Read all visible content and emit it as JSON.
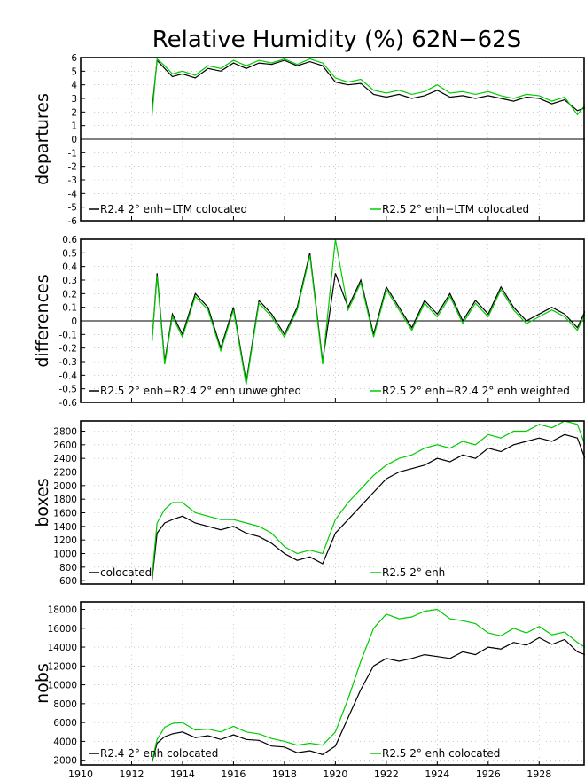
{
  "title": "Relative Humidity (%) 62N−62S",
  "colors": {
    "black_series": "#000000",
    "green_series": "#00cc00",
    "axis": "#000000",
    "grid": "#aaaaaa"
  },
  "x_ticks": [
    "1910",
    "1912",
    "1914",
    "1916",
    "1918",
    "1920",
    "1922",
    "1924",
    "1926",
    "1928"
  ],
  "chart_data": [
    {
      "type": "line",
      "ylabel": "departures",
      "ylim": [
        -6,
        6
      ],
      "xlim": [
        1910,
        1929.8
      ],
      "y_ticks": [
        "6",
        "5",
        "4",
        "3",
        "2",
        "1",
        "0",
        "-1",
        "-2",
        "-3",
        "-4",
        "-5",
        "-6"
      ],
      "grid": true,
      "zero_line": true,
      "x": [
        1912.8,
        1913.0,
        1913.3,
        1913.6,
        1914.0,
        1914.5,
        1915.0,
        1915.5,
        1916.0,
        1916.5,
        1917.0,
        1917.5,
        1918.0,
        1918.5,
        1919.0,
        1919.5,
        1920.0,
        1920.5,
        1921.0,
        1921.5,
        1922.0,
        1922.5,
        1923.0,
        1923.5,
        1924.0,
        1924.5,
        1925.0,
        1925.5,
        1926.0,
        1926.5,
        1927.0,
        1927.5,
        1928.0,
        1928.5,
        1929.0,
        1929.5,
        1929.8
      ],
      "series": [
        {
          "name": "R2.4 2° enh−LTM colocated",
          "color": "#000000",
          "values": [
            2.2,
            5.8,
            5.2,
            4.6,
            4.8,
            4.5,
            5.2,
            5.0,
            5.6,
            5.2,
            5.6,
            5.5,
            5.8,
            5.4,
            5.7,
            5.4,
            4.2,
            4.0,
            4.1,
            3.3,
            3.1,
            3.3,
            3.0,
            3.2,
            3.6,
            3.1,
            3.2,
            3.0,
            3.2,
            3.0,
            2.8,
            3.1,
            3.0,
            2.6,
            2.9,
            2.1,
            2.3
          ]
        },
        {
          "name": "R2.5 2° enh−LTM colocated",
          "color": "#00cc00",
          "values": [
            1.7,
            5.9,
            5.4,
            4.8,
            5.0,
            4.7,
            5.4,
            5.2,
            5.8,
            5.4,
            5.8,
            5.6,
            5.9,
            5.5,
            5.9,
            5.6,
            4.5,
            4.2,
            4.4,
            3.6,
            3.4,
            3.6,
            3.3,
            3.5,
            4.0,
            3.4,
            3.5,
            3.3,
            3.5,
            3.2,
            3.0,
            3.3,
            3.2,
            2.8,
            3.1,
            1.8,
            2.5
          ]
        }
      ],
      "legend": "bottom"
    },
    {
      "type": "line",
      "ylabel": "differences",
      "ylim": [
        -0.6,
        0.6
      ],
      "xlim": [
        1910,
        1929.8
      ],
      "y_ticks": [
        "0.6",
        "0.5",
        "0.4",
        "0.3",
        "0.2",
        "0.1",
        "0",
        "-0.1",
        "-0.2",
        "-0.3",
        "-0.4",
        "-0.5",
        "-0.6"
      ],
      "grid": true,
      "zero_line": true,
      "x": [
        1912.8,
        1913.0,
        1913.3,
        1913.6,
        1914.0,
        1914.5,
        1915.0,
        1915.5,
        1916.0,
        1916.5,
        1917.0,
        1917.5,
        1918.0,
        1918.5,
        1919.0,
        1919.5,
        1920.0,
        1920.5,
        1921.0,
        1921.5,
        1922.0,
        1922.5,
        1923.0,
        1923.5,
        1924.0,
        1924.5,
        1925.0,
        1925.5,
        1926.0,
        1926.5,
        1927.0,
        1927.5,
        1928.0,
        1928.5,
        1929.0,
        1929.5,
        1929.8
      ],
      "series": [
        {
          "name": "R2.5 2° enh−R2.4 2° enh unweighted",
          "color": "#000000",
          "values": [
            -0.15,
            0.35,
            -0.3,
            0.05,
            -0.1,
            0.2,
            0.1,
            -0.2,
            0.1,
            -0.45,
            0.15,
            0.05,
            -0.1,
            0.1,
            0.5,
            -0.3,
            0.35,
            0.1,
            0.3,
            -0.1,
            0.25,
            0.1,
            -0.05,
            0.15,
            0.05,
            0.2,
            0.0,
            0.15,
            0.05,
            0.25,
            0.1,
            0.0,
            0.05,
            0.1,
            0.05,
            -0.05,
            0.07
          ]
        },
        {
          "name": "R2.5 2° enh−R2.4 2° enh weighted",
          "color": "#00cc00",
          "values": [
            -0.15,
            0.33,
            -0.32,
            0.03,
            -0.12,
            0.18,
            0.08,
            -0.22,
            0.08,
            -0.47,
            0.13,
            0.03,
            -0.12,
            0.08,
            0.48,
            -0.32,
            0.6,
            0.08,
            0.28,
            -0.12,
            0.23,
            0.08,
            -0.07,
            0.13,
            0.03,
            0.18,
            -0.02,
            0.13,
            0.03,
            0.23,
            0.08,
            -0.02,
            0.03,
            0.08,
            0.03,
            -0.07,
            0.05
          ]
        }
      ],
      "legend": "bottom"
    },
    {
      "type": "line",
      "ylabel": "boxes",
      "ylim": [
        550,
        2950
      ],
      "xlim": [
        1910,
        1929.8
      ],
      "y_ticks": [
        "2800",
        "2600",
        "2400",
        "2200",
        "2000",
        "1800",
        "1600",
        "1400",
        "1200",
        "1000",
        "800",
        "600"
      ],
      "y_tick_values": [
        2800,
        2600,
        2400,
        2200,
        2000,
        1800,
        1600,
        1400,
        1200,
        1000,
        800,
        600
      ],
      "grid": true,
      "zero_line": false,
      "x": [
        1912.8,
        1913.0,
        1913.3,
        1913.6,
        1914.0,
        1914.5,
        1915.0,
        1915.5,
        1916.0,
        1916.5,
        1917.0,
        1917.5,
        1918.0,
        1918.5,
        1919.0,
        1919.5,
        1920.0,
        1920.5,
        1921.0,
        1921.5,
        1922.0,
        1922.5,
        1923.0,
        1923.5,
        1924.0,
        1924.5,
        1925.0,
        1925.5,
        1926.0,
        1926.5,
        1927.0,
        1927.5,
        1928.0,
        1928.5,
        1929.0,
        1929.5,
        1929.8
      ],
      "series": [
        {
          "name": "colocated",
          "color": "#000000",
          "values": [
            600,
            1300,
            1450,
            1500,
            1550,
            1450,
            1400,
            1350,
            1400,
            1300,
            1250,
            1150,
            1000,
            900,
            950,
            850,
            1300,
            1500,
            1700,
            1900,
            2100,
            2200,
            2250,
            2300,
            2400,
            2350,
            2450,
            2400,
            2550,
            2500,
            2600,
            2650,
            2700,
            2650,
            2750,
            2700,
            2400
          ]
        },
        {
          "name": "R2.5 2° enh",
          "color": "#00cc00",
          "values": [
            650,
            1450,
            1650,
            1750,
            1750,
            1600,
            1550,
            1500,
            1500,
            1450,
            1400,
            1300,
            1100,
            1000,
            1050,
            1000,
            1500,
            1750,
            1950,
            2150,
            2300,
            2400,
            2450,
            2550,
            2600,
            2550,
            2650,
            2600,
            2750,
            2700,
            2800,
            2800,
            2900,
            2850,
            2950,
            2900,
            2600
          ]
        }
      ],
      "legend": "bottom"
    },
    {
      "type": "line",
      "ylabel": "nobs",
      "ylim": [
        1500,
        18800
      ],
      "xlim": [
        1910,
        1929.8
      ],
      "y_ticks": [
        "18000",
        "16000",
        "14000",
        "12000",
        "10000",
        "8000",
        "6000",
        "4000",
        "2000"
      ],
      "y_tick_values": [
        18000,
        16000,
        14000,
        12000,
        10000,
        8000,
        6000,
        4000,
        2000
      ],
      "grid": true,
      "zero_line": false,
      "x": [
        1912.8,
        1913.0,
        1913.3,
        1913.6,
        1914.0,
        1914.5,
        1915.0,
        1915.5,
        1916.0,
        1916.5,
        1917.0,
        1917.5,
        1918.0,
        1918.5,
        1919.0,
        1919.5,
        1920.0,
        1920.5,
        1921.0,
        1921.5,
        1922.0,
        1922.5,
        1923.0,
        1923.5,
        1924.0,
        1924.5,
        1925.0,
        1925.5,
        1926.0,
        1926.5,
        1927.0,
        1927.5,
        1928.0,
        1928.5,
        1929.0,
        1929.5,
        1929.8
      ],
      "series": [
        {
          "name": "R2.4 2° enh colocated",
          "color": "#000000",
          "values": [
            1800,
            3800,
            4500,
            4800,
            5000,
            4400,
            4600,
            4200,
            4700,
            4200,
            4100,
            3500,
            3400,
            2800,
            3000,
            2600,
            3500,
            6500,
            9500,
            12000,
            12800,
            12500,
            12800,
            13200,
            13000,
            12800,
            13500,
            13200,
            14000,
            13800,
            14500,
            14200,
            15000,
            14300,
            14800,
            13500,
            13200
          ]
        },
        {
          "name": "R2.5 2° enh colocated",
          "color": "#00cc00",
          "values": [
            1900,
            4200,
            5500,
            5900,
            6000,
            5200,
            5300,
            5000,
            5600,
            5000,
            4800,
            4300,
            4000,
            3600,
            3800,
            3600,
            5000,
            8500,
            12500,
            16000,
            17500,
            17000,
            17200,
            17800,
            18000,
            17000,
            16800,
            16500,
            15500,
            15200,
            16000,
            15500,
            16200,
            15300,
            15600,
            14500,
            14000
          ]
        }
      ],
      "legend": "bottom"
    }
  ]
}
